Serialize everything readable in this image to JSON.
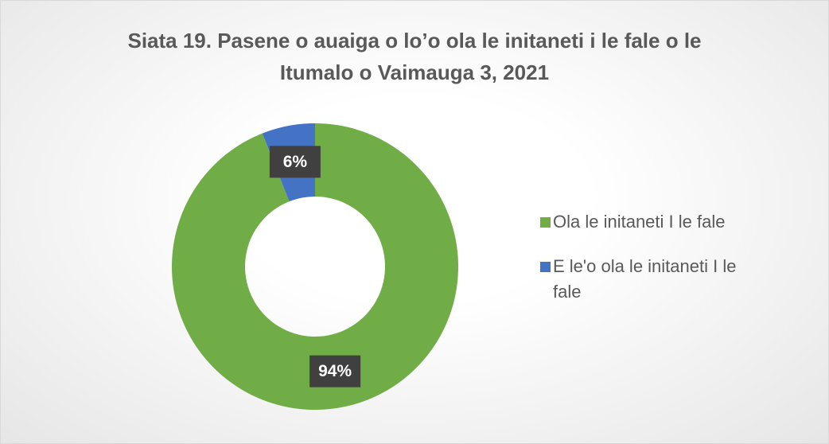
{
  "chart_data": {
    "type": "donut",
    "title": "Siata 19. Pasene o auaiga o lo’o ola le initaneti i le fale o le Itumalo o Vaimauga 3, 2021",
    "categories": [
      "Ola le initaneti I le fale",
      "E le'o ola le initaneti I le fale"
    ],
    "values": [
      94,
      6
    ],
    "value_labels": [
      "94%",
      "6%"
    ],
    "colors": [
      "#70ad47",
      "#4472c4"
    ],
    "legend": "right"
  }
}
